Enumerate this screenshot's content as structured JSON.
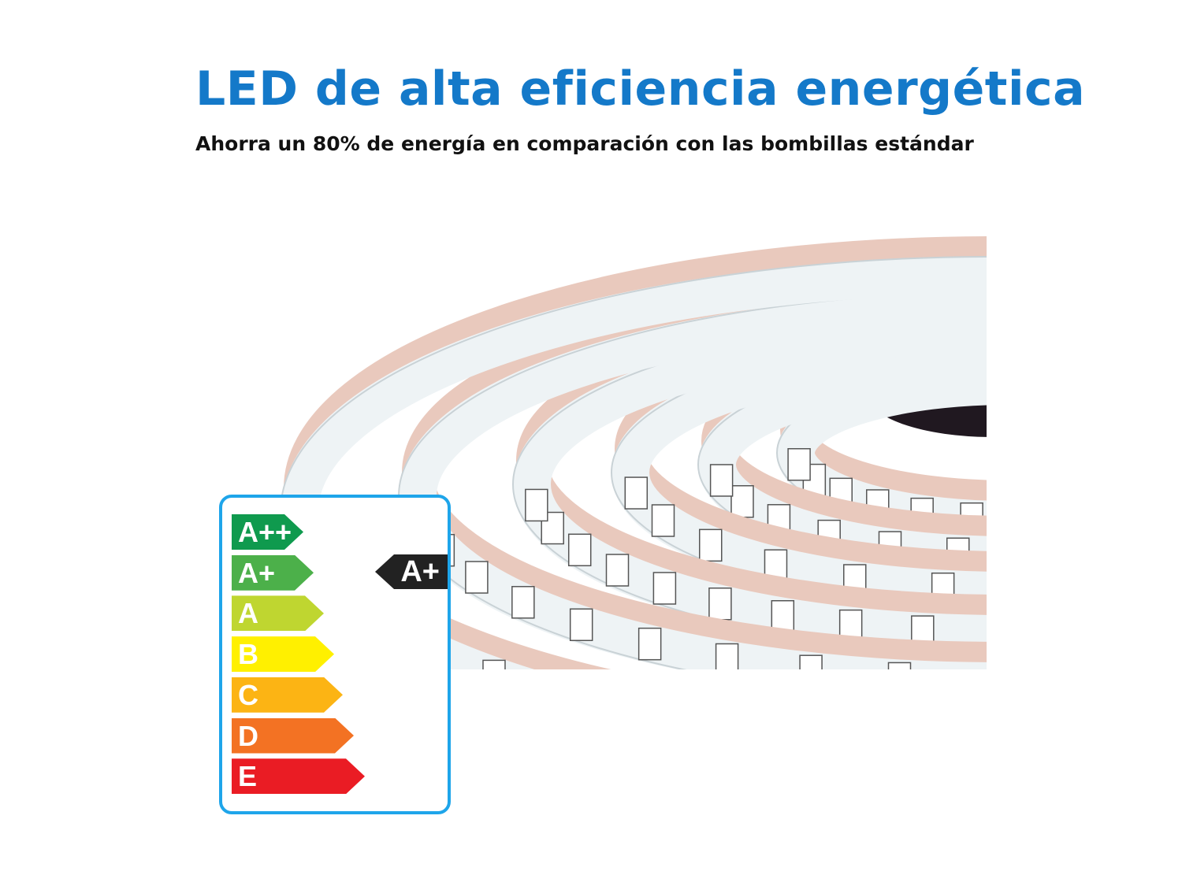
{
  "header": {
    "title": "LED de alta eficiencia energética",
    "subtitle": "Ahorra un 80% de energía en comparación con las bombillas estándar"
  },
  "energy_label": {
    "classes": [
      {
        "label": "A++",
        "color": "#0f9a4e"
      },
      {
        "label": "A+",
        "color": "#4cb04a"
      },
      {
        "label": "A",
        "color": "#bfd630"
      },
      {
        "label": "B",
        "color": "#fff000"
      },
      {
        "label": "C",
        "color": "#fcb414"
      },
      {
        "label": "D",
        "color": "#f37223"
      },
      {
        "label": "E",
        "color": "#ea1c24"
      }
    ],
    "rating": "A+",
    "border_color": "#1ea5ea"
  },
  "colors": {
    "title": "#1479c9"
  }
}
